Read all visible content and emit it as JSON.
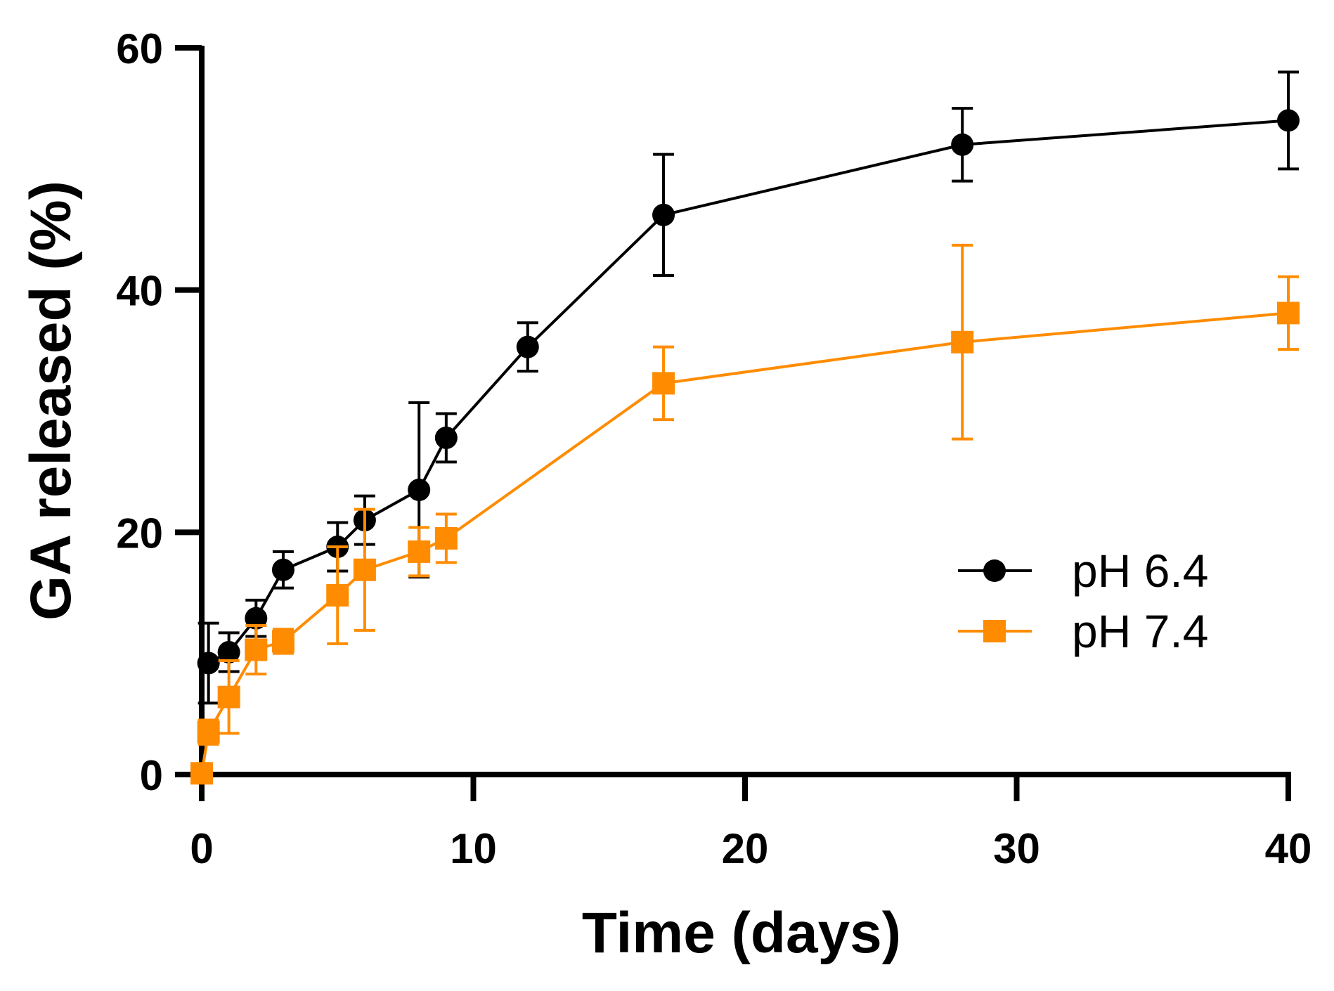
{
  "chart_data": {
    "type": "line",
    "title": "",
    "xlabel": "Time (days)",
    "ylabel": "GA released (%)",
    "xlim": [
      0,
      40
    ],
    "ylim": [
      0,
      60
    ],
    "xticks": [
      0,
      10,
      20,
      30,
      40
    ],
    "yticks": [
      0,
      20,
      40,
      60
    ],
    "xtick_labels": [
      "0",
      "10",
      "20",
      "30",
      "40"
    ],
    "ytick_labels": [
      "0",
      "20",
      "40",
      "60"
    ],
    "grid": false,
    "legend_position": "right",
    "series": [
      {
        "name": "pH 6.4",
        "color": "#000000",
        "marker": "circle",
        "x": [
          0.25,
          1,
          2,
          3,
          5,
          6,
          8,
          9,
          12,
          17,
          28,
          40
        ],
        "y": [
          9.2,
          10.1,
          12.9,
          16.9,
          18.8,
          21.0,
          23.5,
          27.8,
          35.3,
          46.2,
          52.0,
          54.0
        ],
        "err": [
          3.3,
          1.6,
          1.5,
          1.5,
          2.0,
          2.0,
          7.2,
          2.0,
          2.0,
          5.0,
          3.0,
          4.0
        ]
      },
      {
        "name": "pH 7.4",
        "color": "#FF8C00",
        "marker": "square",
        "x": [
          0,
          0.25,
          1,
          2,
          3,
          5,
          6,
          8,
          9,
          17,
          28,
          40
        ],
        "y": [
          0.1,
          3.5,
          6.4,
          10.3,
          11.0,
          14.8,
          16.9,
          18.4,
          19.5,
          32.3,
          35.7,
          38.1
        ],
        "err": [
          0,
          1.0,
          3.0,
          2.0,
          1.0,
          4.0,
          5.0,
          2.0,
          2.0,
          3.0,
          8.0,
          3.0
        ]
      }
    ]
  }
}
